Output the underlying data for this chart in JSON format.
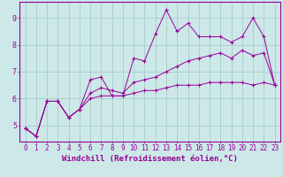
{
  "xlabel": "Windchill (Refroidissement éolien,°C)",
  "bg_color": "#cce8e8",
  "line_color": "#990099",
  "grid_color": "#aacccc",
  "xlim": [
    -0.5,
    23.5
  ],
  "ylim": [
    4.4,
    9.6
  ],
  "xticks": [
    0,
    1,
    2,
    3,
    4,
    5,
    6,
    7,
    8,
    9,
    10,
    11,
    12,
    13,
    14,
    15,
    16,
    17,
    18,
    19,
    20,
    21,
    22,
    23
  ],
  "yticks": [
    5,
    6,
    7,
    8,
    9
  ],
  "series1_x": [
    0,
    1,
    2,
    3,
    4,
    5,
    6,
    7,
    8,
    9,
    10,
    11,
    12,
    13,
    14,
    15,
    16,
    17,
    18,
    19,
    20,
    21,
    22,
    23
  ],
  "series1_y": [
    4.9,
    4.6,
    5.9,
    5.9,
    5.3,
    5.6,
    6.7,
    6.8,
    6.1,
    6.1,
    7.5,
    7.4,
    8.4,
    9.3,
    8.5,
    8.8,
    8.3,
    8.3,
    8.3,
    8.1,
    8.3,
    9.0,
    8.3,
    6.5
  ],
  "series2_x": [
    0,
    1,
    2,
    3,
    4,
    5,
    6,
    7,
    8,
    9,
    10,
    11,
    12,
    13,
    14,
    15,
    16,
    17,
    18,
    19,
    20,
    21,
    22,
    23
  ],
  "series2_y": [
    4.9,
    4.6,
    5.9,
    5.9,
    5.3,
    5.6,
    6.2,
    6.4,
    6.3,
    6.2,
    6.6,
    6.7,
    6.8,
    7.0,
    7.2,
    7.4,
    7.5,
    7.6,
    7.7,
    7.5,
    7.8,
    7.6,
    7.7,
    6.5
  ],
  "series3_x": [
    0,
    1,
    2,
    3,
    4,
    5,
    6,
    7,
    8,
    9,
    10,
    11,
    12,
    13,
    14,
    15,
    16,
    17,
    18,
    19,
    20,
    21,
    22,
    23
  ],
  "series3_y": [
    4.9,
    4.6,
    5.9,
    5.9,
    5.3,
    5.6,
    6.0,
    6.1,
    6.1,
    6.1,
    6.2,
    6.3,
    6.3,
    6.4,
    6.5,
    6.5,
    6.5,
    6.6,
    6.6,
    6.6,
    6.6,
    6.5,
    6.6,
    6.5
  ],
  "tick_fontsize": 5.5,
  "xlabel_fontsize": 6.5
}
